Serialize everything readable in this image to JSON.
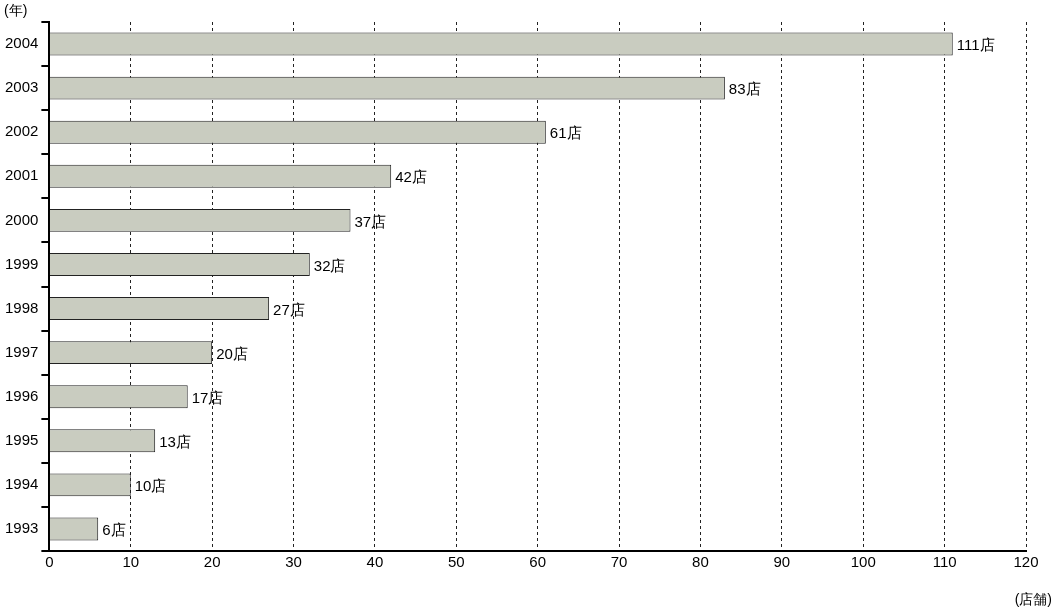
{
  "chart_data": {
    "type": "bar",
    "orientation": "horizontal",
    "xlabel": "(店舗)",
    "ylabel": "(年)",
    "categories": [
      "2004",
      "2003",
      "2002",
      "2001",
      "2000",
      "1999",
      "1998",
      "1997",
      "1996",
      "1995",
      "1994",
      "1993"
    ],
    "values": [
      111,
      83,
      61,
      42,
      37,
      32,
      27,
      20,
      17,
      13,
      10,
      6
    ],
    "value_labels": [
      "111店",
      "83店",
      "61店",
      "42店",
      "37店",
      "32店",
      "27店",
      "20店",
      "17店",
      "13店",
      "10店",
      "6店"
    ],
    "color": "#c9ccc0",
    "xlim": [
      0,
      120
    ],
    "xticks": [
      0,
      10,
      20,
      30,
      40,
      50,
      60,
      70,
      80,
      90,
      100,
      110,
      120
    ],
    "grid": "x",
    "legend": false
  }
}
